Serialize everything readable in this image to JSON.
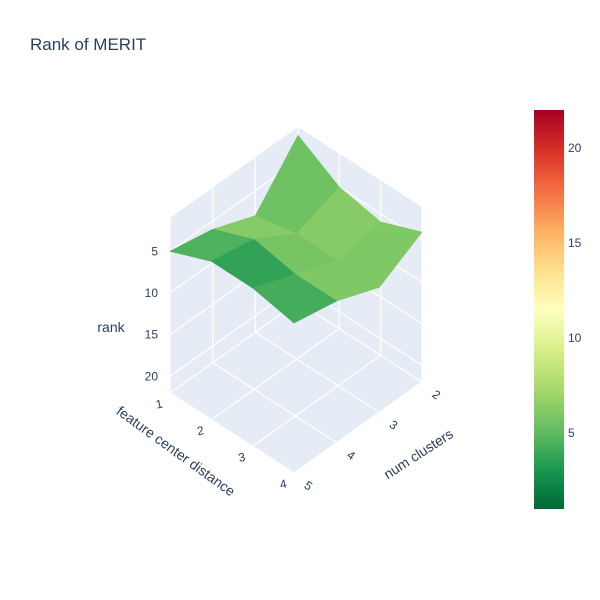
{
  "chart_data": {
    "type": "surface",
    "title": "Rank of MERIT",
    "x_axis": {
      "label": "num clusters",
      "ticks": [
        "2",
        "3",
        "4",
        "5"
      ]
    },
    "y_axis": {
      "label": "feature center distance",
      "ticks": [
        "1",
        "2",
        "3",
        "4"
      ]
    },
    "z_axis": {
      "label": "rank",
      "ticks": [
        "5",
        "10",
        "15",
        "20"
      ],
      "range": [
        1,
        22
      ],
      "reversed": true
    },
    "x": [
      2,
      3,
      4,
      5
    ],
    "y": [
      1,
      2,
      3,
      4
    ],
    "z": [
      [
        2,
        8,
        6,
        5
      ],
      [
        5,
        7,
        4,
        3
      ],
      [
        6,
        7,
        5,
        3
      ],
      [
        4,
        7,
        5,
        4
      ]
    ],
    "colorbar": {
      "colorscale": "RdYlGn reversed",
      "range": [
        1,
        22
      ],
      "ticks": [
        "5",
        "10",
        "15",
        "20"
      ],
      "colors": [
        "#006837",
        "#1a9850",
        "#66bd63",
        "#a6d96a",
        "#d9ef8b",
        "#ffffbf",
        "#fee08b",
        "#fdae61",
        "#f46d43",
        "#d73027",
        "#a50026"
      ]
    }
  }
}
